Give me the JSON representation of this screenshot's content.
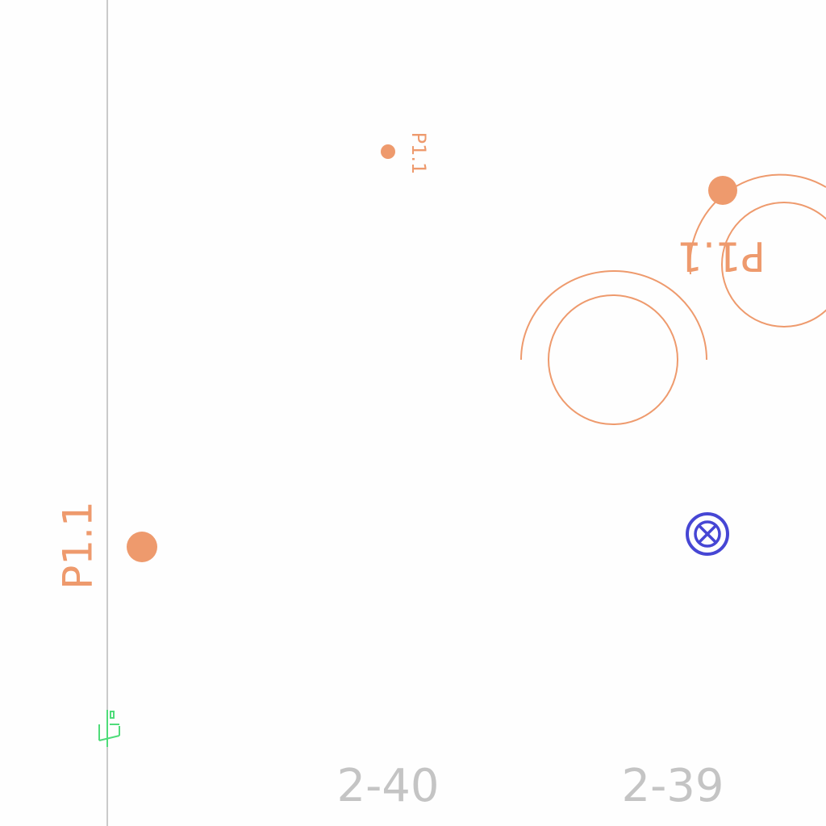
{
  "colors": {
    "background": "#fefefe",
    "symbol": "#ee9a6d",
    "guide_line": "#b8b8b8",
    "grid_label": "#c4c4c4",
    "marker": "#4646d4",
    "green_symbol": "#4fdc7a"
  },
  "labels": {
    "point_small": "P1.1",
    "point_rotated": "P1.1",
    "point_large": "P1.1"
  },
  "grid_labels": {
    "col_a": "2-40",
    "col_b": "2-39"
  },
  "icons": {
    "marker": "circled-x-target-icon",
    "green": "ground-symbol-icon"
  }
}
